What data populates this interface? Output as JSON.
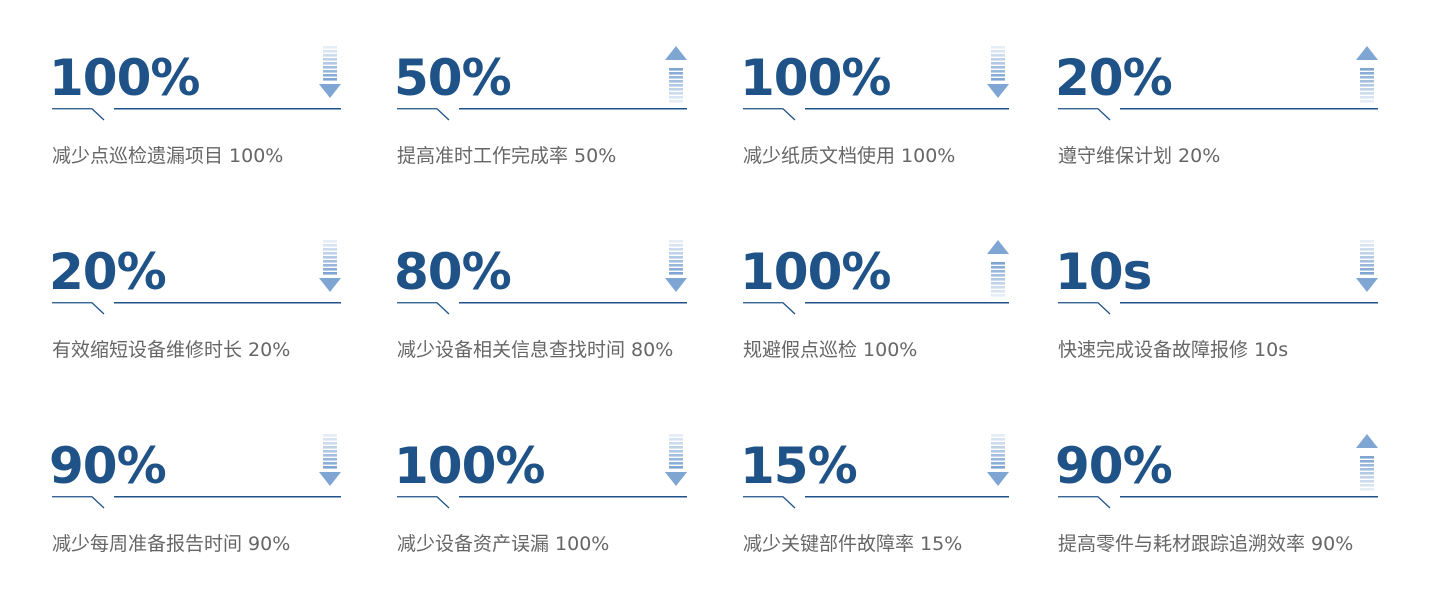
{
  "colors": {
    "number": "#1f5287",
    "line": "#1f5287",
    "arrow": "#7fa5d2",
    "label": "#666666"
  },
  "metrics": [
    {
      "value": "100%",
      "label": "减少点巡检遗漏项目 100%",
      "arrow": "down"
    },
    {
      "value": "50%",
      "label": "提高准时工作完成率 50%",
      "arrow": "up"
    },
    {
      "value": "100%",
      "label": "减少纸质文档使用 100%",
      "arrow": "down"
    },
    {
      "value": "20%",
      "label": "遵守维保计划 20%",
      "arrow": "up"
    },
    {
      "value": "20%",
      "label": "有效缩短设备维修时长 20%",
      "arrow": "down"
    },
    {
      "value": "80%",
      "label": "减少设备相关信息查找时间 80%",
      "arrow": "down"
    },
    {
      "value": "100%",
      "label": "规避假点巡检 100%",
      "arrow": "up"
    },
    {
      "value": "10s",
      "label": "快速完成设备故障报修 10s",
      "arrow": "down"
    },
    {
      "value": "90%",
      "label": "减少每周准备报告时间 90%",
      "arrow": "down"
    },
    {
      "value": "100%",
      "label": "减少设备资产误漏 100%",
      "arrow": "down"
    },
    {
      "value": "15%",
      "label": "减少关键部件故障率 15%",
      "arrow": "down"
    },
    {
      "value": "90%",
      "label": "提高零件与耗材跟踪追溯效率 90%",
      "arrow": "up"
    }
  ]
}
